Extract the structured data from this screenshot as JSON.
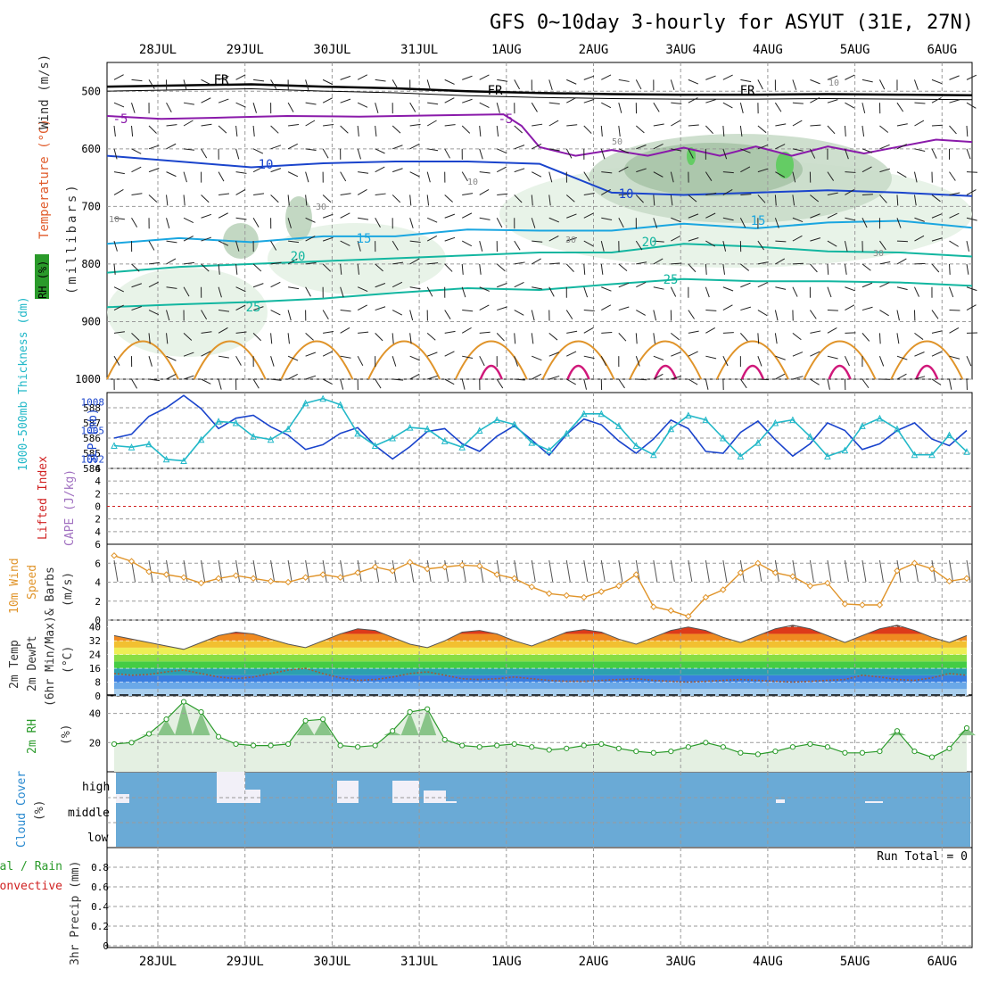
{
  "title": "GFS 0~10day 3-hourly for ASYUT (31E, 27N)",
  "dates": [
    "28JUL",
    "29JUL",
    "30JUL",
    "31JUL",
    "1AUG",
    "2AUG",
    "3AUG",
    "4AUG",
    "5AUG",
    "6AUG"
  ],
  "colors": {
    "grid": "#9a9a9a",
    "purple": "#8a1aaa",
    "blue": "#1a44cc",
    "lightblue": "#1aa6e0",
    "teal": "#12b6a0",
    "cyan": "#22b8c8",
    "orange": "#e0942a",
    "magenta": "#d0187a",
    "green_rh": "#2a9a2a",
    "cloud": "#6aaad6",
    "barb": "#555555",
    "lifted_red": "#d02020",
    "cape_purple": "#a070c0",
    "rh_text": "#2a9a2a",
    "cloud_label": "#2a8ad0"
  },
  "labels": {
    "p1_rh": "RH (%)",
    "p1_temp": "Temperature (°C)",
    "p1_wind": "Wind (m/s)",
    "p1_mb": "(millibars)",
    "p2_thick": "1000-500mb Thickness (dm)",
    "p2_slp": "SLP (mb)",
    "p3_lifted": "Lifted Index",
    "p3_cape": "CAPE (J/kg)",
    "p4_line1": "10m Wind",
    "p4_line2": "Speed",
    "p4_line3": "& Barbs",
    "p4_line4": "(m/s)",
    "p5_line1": "2m Temp",
    "p5_line2": "2m DewPt",
    "p5_line3": "(6hr Min/Max)",
    "p5_line4": "(°C)",
    "p6_line1": "2m RH",
    "p6_line2": "(%)",
    "p7_line1": "Cloud Cover",
    "p7_line2": "(%)",
    "p7_high": "high",
    "p7_middle": "middle",
    "p7_low": "low",
    "p8_line1": "Total / Rain",
    "p8_line2": "Convective",
    "p8_line3": "3hr Precip (mm)",
    "p8_runtotal": "Run Total = 0"
  },
  "chart_data": [
    {
      "type": "line",
      "name": "upper-air",
      "title": "Temperature, RH and Wind vs pressure",
      "ylabel": "millibars",
      "ylim": [
        1000,
        450
      ],
      "yticks": [
        "500",
        "600",
        "700",
        "800",
        "900",
        "1000"
      ],
      "contour_labels": [
        "FR",
        "FR",
        "FR",
        "-5",
        "-5",
        "10",
        "10",
        "15",
        "15",
        "20",
        "20",
        "25",
        "25",
        "10",
        "30",
        "50",
        "10",
        "30",
        "30",
        "10"
      ],
      "contours": [
        {
          "name": "FR (0C)",
          "color": "#000000",
          "points": [
            [
              0,
              492
            ],
            [
              8,
              490
            ],
            [
              16,
              488
            ],
            [
              24,
              492
            ],
            [
              32,
              495
            ],
            [
              40,
              500
            ],
            [
              48,
              503
            ],
            [
              56,
              505
            ],
            [
              64,
              506
            ],
            [
              72,
              506
            ],
            [
              80,
              505
            ],
            [
              88,
              506
            ],
            [
              96,
              507
            ]
          ]
        },
        {
          "name": "-5C",
          "color": "#8a1aaa",
          "points": [
            [
              0,
              543
            ],
            [
              6,
              548
            ],
            [
              12,
              546
            ],
            [
              20,
              543
            ],
            [
              28,
              544
            ],
            [
              36,
              542
            ],
            [
              44,
              540
            ],
            [
              46,
              560
            ],
            [
              48,
              597
            ],
            [
              52,
              612
            ],
            [
              56,
              602
            ],
            [
              60,
              612
            ],
            [
              64,
              598
            ],
            [
              68,
              612
            ],
            [
              72,
              596
            ],
            [
              76,
              612
            ],
            [
              80,
              596
            ],
            [
              84,
              608
            ],
            [
              88,
              596
            ],
            [
              92,
              584
            ],
            [
              96,
              588
            ]
          ]
        },
        {
          "name": "10C",
          "color": "#1a44cc",
          "points": [
            [
              0,
              612
            ],
            [
              8,
              622
            ],
            [
              16,
              632
            ],
            [
              24,
              625
            ],
            [
              32,
              622
            ],
            [
              40,
              622
            ],
            [
              48,
              626
            ],
            [
              56,
              676
            ],
            [
              64,
              680
            ],
            [
              72,
              676
            ],
            [
              80,
              672
            ],
            [
              88,
              676
            ],
            [
              96,
              682
            ]
          ]
        },
        {
          "name": "15C",
          "color": "#1aa6e0",
          "points": [
            [
              0,
              765
            ],
            [
              8,
              755
            ],
            [
              16,
              762
            ],
            [
              24,
              752
            ],
            [
              32,
              752
            ],
            [
              40,
              740
            ],
            [
              48,
              742
            ],
            [
              56,
              742
            ],
            [
              64,
              730
            ],
            [
              72,
              738
            ],
            [
              80,
              728
            ],
            [
              88,
              725
            ],
            [
              96,
              737
            ]
          ]
        },
        {
          "name": "20C",
          "color": "#12b6a0",
          "points": [
            [
              0,
              815
            ],
            [
              8,
              805
            ],
            [
              16,
              800
            ],
            [
              24,
              795
            ],
            [
              32,
              790
            ],
            [
              40,
              785
            ],
            [
              48,
              780
            ],
            [
              56,
              780
            ],
            [
              64,
              765
            ],
            [
              72,
              770
            ],
            [
              80,
              778
            ],
            [
              88,
              780
            ],
            [
              96,
              787
            ]
          ]
        },
        {
          "name": "25C",
          "color": "#12b6a0",
          "points": [
            [
              0,
              875
            ],
            [
              8,
              870
            ],
            [
              16,
              866
            ],
            [
              24,
              860
            ],
            [
              32,
              850
            ],
            [
              40,
              842
            ],
            [
              48,
              845
            ],
            [
              56,
              835
            ],
            [
              64,
              826
            ],
            [
              72,
              830
            ],
            [
              80,
              830
            ],
            [
              88,
              832
            ],
            [
              96,
              838
            ]
          ]
        }
      ]
    },
    {
      "type": "line",
      "name": "thickness-slp",
      "ylim_thickness": [
        584,
        589
      ],
      "ylim_slp": [
        1001,
        1009
      ],
      "yticks_left": [
        "588",
        "587",
        "586",
        "585",
        "584"
      ],
      "yticks_right": [
        "1008",
        "1005",
        "1002"
      ],
      "series": [
        {
          "name": "SLP (mb)",
          "color": "#1a44cc",
          "values": [
            1004.2,
            1004.6,
            1006.5,
            1007.4,
            1008.7,
            1007.3,
            1005.2,
            1006.3,
            1006.6,
            1005.4,
            1004.5,
            1003.0,
            1003.5,
            1004.7,
            1005.3,
            1003.4,
            1002.0,
            1003.3,
            1004.9,
            1005.2,
            1003.6,
            1002.8,
            1004.4,
            1005.5,
            1004.0,
            1002.4,
            1004.6,
            1006.2,
            1005.6,
            1003.9,
            1002.6,
            1004.1,
            1006.1,
            1005.2,
            1002.8,
            1002.6,
            1004.8,
            1006.0,
            1004.0,
            1002.3,
            1003.6,
            1005.8,
            1005.0,
            1003.0,
            1003.6,
            1005.0,
            1005.8,
            1004.1,
            1003.4,
            1005.0
          ]
        },
        {
          "name": "Thickness (dm)",
          "color": "#22b8c8",
          "values": [
            585.5,
            585.4,
            585.6,
            584.6,
            584.5,
            585.9,
            587.1,
            587.0,
            586.1,
            585.9,
            586.6,
            588.3,
            588.6,
            588.2,
            586.3,
            585.5,
            586.0,
            586.7,
            586.6,
            585.8,
            585.4,
            586.5,
            587.2,
            586.9,
            585.7,
            585.2,
            586.3,
            587.6,
            587.6,
            586.8,
            585.5,
            584.9,
            586.6,
            587.5,
            587.2,
            586.0,
            584.8,
            585.7,
            587.0,
            587.2,
            586.1,
            584.8,
            585.2,
            586.8,
            587.3,
            586.6,
            584.9,
            584.9,
            586.2,
            585.1
          ]
        }
      ]
    },
    {
      "type": "line",
      "name": "lifted-cape",
      "ylim": [
        -6,
        6
      ],
      "yticks": [
        "-6",
        "-4",
        "-2",
        "0",
        "2",
        "4",
        "6"
      ],
      "series": [
        {
          "name": "Lifted Index",
          "values": []
        },
        {
          "name": "CAPE",
          "values": []
        }
      ]
    },
    {
      "type": "line",
      "name": "wind-10m",
      "ylim": [
        0,
        8
      ],
      "yticks": [
        "0",
        "2",
        "4",
        "6"
      ],
      "series": [
        {
          "name": "10m Wind Speed (m/s)",
          "color": "#e0942a",
          "values": [
            6.8,
            6.2,
            5.1,
            4.8,
            4.5,
            3.9,
            4.4,
            4.7,
            4.4,
            4.1,
            4.0,
            4.5,
            4.8,
            4.5,
            5.0,
            5.6,
            5.2,
            6.1,
            5.4,
            5.6,
            5.8,
            5.7,
            4.8,
            4.4,
            3.5,
            2.8,
            2.6,
            2.4,
            3.0,
            3.6,
            4.8,
            1.4,
            1.0,
            0.4,
            2.4,
            3.2,
            5.0,
            6.0,
            5.0,
            4.6,
            3.6,
            3.9,
            1.7,
            1.6,
            1.6,
            5.2,
            6.0,
            5.4,
            4.1,
            4.4
          ]
        }
      ]
    },
    {
      "type": "area",
      "name": "temp-2m",
      "ylim": [
        0,
        44
      ],
      "yticks": [
        "0",
        "8",
        "16",
        "24",
        "32",
        "40"
      ],
      "series": [
        {
          "name": "2m Temp (°C)",
          "values": [
            35.0,
            33.0,
            31.0,
            29.0,
            27.0,
            31.0,
            35.0,
            37.0,
            36.0,
            33.0,
            30.0,
            28.0,
            32.0,
            36.0,
            39.0,
            38.0,
            34.0,
            30.0,
            28.0,
            32.0,
            37.0,
            38.0,
            36.0,
            32.0,
            29.0,
            33.0,
            37.0,
            38.5,
            37.0,
            33.0,
            30.0,
            34.0,
            38.0,
            40.0,
            38.0,
            34.0,
            31.0,
            35.0,
            39.0,
            41.0,
            39.0,
            35.0,
            31.0,
            35.0,
            39.0,
            41.0,
            38.0,
            34.0,
            31.0,
            35.0
          ]
        },
        {
          "name": "2m DewPt (°C)",
          "values": [
            13.0,
            12.0,
            12.5,
            14.0,
            15.0,
            13.0,
            11.0,
            10.0,
            11.0,
            13.0,
            15.0,
            16.0,
            13.0,
            10.5,
            9.0,
            9.5,
            11.0,
            13.0,
            14.0,
            12.0,
            10.0,
            9.5,
            10.0,
            11.0,
            10.0,
            9.0,
            8.5,
            8.5,
            9.0,
            9.5,
            10.0,
            9.0,
            8.5,
            8.0,
            8.5,
            9.0,
            9.5,
            9.0,
            8.5,
            8.0,
            8.5,
            9.0,
            9.5,
            12.0,
            11.0,
            9.5,
            9.0,
            10.5,
            13.0,
            12.0
          ]
        }
      ]
    },
    {
      "type": "area",
      "name": "rh-2m",
      "ylim": [
        0,
        52
      ],
      "yticks": [
        "20",
        "40"
      ],
      "series": [
        {
          "name": "2m RH (%)",
          "color": "#2a9a2a",
          "values": [
            19.0,
            20.0,
            26.0,
            36.0,
            48.0,
            41.0,
            24.0,
            19.0,
            18.0,
            18.0,
            19.0,
            35.0,
            36.0,
            18.0,
            17.0,
            18.0,
            28.0,
            41.0,
            43.0,
            22.0,
            18.0,
            17.0,
            18.0,
            19.0,
            17.0,
            15.0,
            16.0,
            18.0,
            19.0,
            16.0,
            14.0,
            13.0,
            14.0,
            17.0,
            20.0,
            17.0,
            13.0,
            12.0,
            14.0,
            17.0,
            19.0,
            17.0,
            13.0,
            13.0,
            14.0,
            28.0,
            14.0,
            10.0,
            16.0,
            30.0
          ]
        }
      ]
    },
    {
      "type": "bar",
      "name": "cloud-cover",
      "ylim": [
        0,
        100
      ],
      "series": [
        {
          "name": "High cloud (%)",
          "values": [
            20,
            0,
            0,
            0,
            0,
            0,
            0,
            0,
            0,
            0,
            0,
            0,
            0,
            0,
            0,
            0,
            0,
            0,
            0,
            0,
            0,
            0,
            0,
            0,
            0,
            0,
            0,
            0,
            0,
            0,
            0,
            0,
            0,
            0,
            0,
            0,
            0,
            0,
            0,
            0,
            0,
            0,
            0,
            0,
            0,
            0,
            0,
            0,
            0,
            0
          ]
        }
      ]
    },
    {
      "type": "bar",
      "name": "precip-3hr",
      "ylim": [
        0,
        1.0
      ],
      "yticks": [
        "0",
        "0.2",
        "0.4",
        "0.6",
        "0.8"
      ],
      "series": [
        {
          "name": "3hr Precip (mm)",
          "values": []
        }
      ]
    }
  ]
}
